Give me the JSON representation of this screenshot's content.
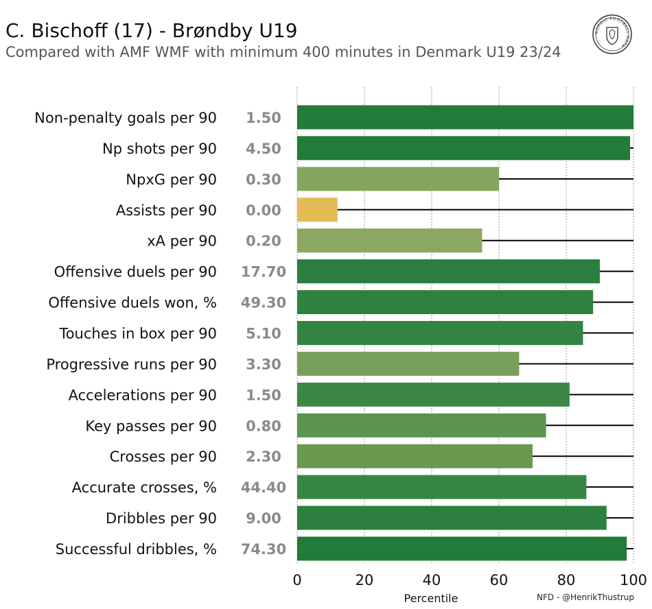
{
  "header": {
    "title": "C. Bischoff (17) - Brøndby U19",
    "subtitle": "Compared with AMF WMF with minimum 400 minutes in Denmark U19 23/24",
    "logo_text": "NORDIC FOOTBALL DATA",
    "credit": "NFD - @HenrikThustrup"
  },
  "chart_data": {
    "type": "bar",
    "orientation": "horizontal",
    "title": "C. Bischoff (17) - Brøndby U19",
    "subtitle": "Compared with AMF WMF with minimum 400 minutes in Denmark U19 23/24",
    "xlabel": "Percentile",
    "xlim": [
      0,
      100
    ],
    "xticks": [
      0,
      20,
      40,
      60,
      80,
      100
    ],
    "grid": "vertical dotted",
    "categories": [
      "Non-penalty goals per 90",
      "Np shots per 90",
      "NpxG per 90",
      "Assists per 90",
      "xA per 90",
      "Offensive duels per 90",
      "Offensive duels won, %",
      "Touches in box per 90",
      "Progressive runs per 90",
      "Accelerations per 90",
      "Key passes per 90",
      "Crosses per 90",
      "Accurate crosses, %",
      "Dribbles per 90",
      "Successful dribbles, %"
    ],
    "raw_values": [
      "1.50",
      "4.50",
      "0.30",
      "0.00",
      "0.20",
      "17.70",
      "49.30",
      "5.10",
      "3.30",
      "1.50",
      "0.80",
      "2.30",
      "44.40",
      "9.00",
      "74.30"
    ],
    "percentiles": [
      100,
      99,
      60,
      12,
      55,
      90,
      88,
      85,
      66,
      81,
      74,
      70,
      86,
      92,
      98
    ],
    "colors": [
      "#227a3b",
      "#227a3b",
      "#84a55e",
      "#e2bc54",
      "#8ba862",
      "#2b7f3e",
      "#2f8140",
      "#338442",
      "#79a05a",
      "#3a8843",
      "#5c944f",
      "#69994f",
      "#368644",
      "#2c7f3e",
      "#227a3b"
    ]
  }
}
